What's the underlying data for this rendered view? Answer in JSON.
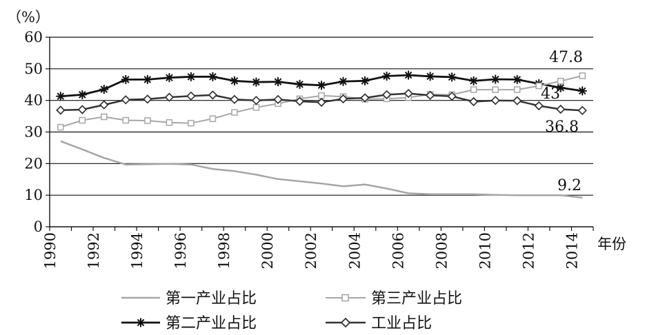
{
  "chart_data": {
    "type": "line",
    "ylabel": "（%）",
    "xlabel": "年份",
    "ylim": [
      0,
      60
    ],
    "xlim": [
      1990,
      2015
    ],
    "y_ticks": [
      "0",
      "10",
      "20",
      "30",
      "40",
      "50",
      "60"
    ],
    "x_ticks": [
      "1990",
      "1992",
      "1994",
      "1996",
      "1998",
      "2000",
      "2002",
      "2004",
      "2006",
      "2008",
      "2010",
      "2012",
      "2014"
    ],
    "grid": "horizontal",
    "legend_placement": "bottom",
    "years": [
      1990,
      1991,
      1992,
      1993,
      1994,
      1995,
      1996,
      1997,
      1998,
      1999,
      2000,
      2001,
      2002,
      2003,
      2004,
      2005,
      2006,
      2007,
      2008,
      2009,
      2010,
      2011,
      2012,
      2013,
      2014
    ],
    "series": [
      {
        "name": "第一产业占比",
        "color": "#a6a6a6",
        "marker": "none",
        "values": [
          27.1,
          24.5,
          21.8,
          19.7,
          19.8,
          19.9,
          19.7,
          18.3,
          17.6,
          16.5,
          15.1,
          14.4,
          13.7,
          12.8,
          13.4,
          12.1,
          10.6,
          10.3,
          10.3,
          10.3,
          10.1,
          10.0,
          10.0,
          10.0,
          9.2
        ]
      },
      {
        "name": "第二产业占比",
        "color": "#111111",
        "marker": "asterisk",
        "values": [
          41.3,
          41.8,
          43.5,
          46.6,
          46.6,
          47.2,
          47.5,
          47.5,
          46.2,
          45.8,
          45.9,
          45.1,
          44.8,
          46.0,
          46.2,
          47.7,
          48.0,
          47.6,
          47.4,
          46.2,
          46.7,
          46.6,
          45.3,
          44.0,
          43.0
        ]
      },
      {
        "name": "第三产业占比",
        "color": "#a6a6a6",
        "marker": "square",
        "values": [
          31.5,
          33.7,
          34.8,
          33.7,
          33.6,
          33.0,
          32.8,
          34.2,
          36.2,
          37.8,
          39.0,
          40.5,
          41.5,
          41.2,
          40.4,
          40.5,
          40.9,
          41.9,
          41.8,
          43.4,
          43.4,
          43.4,
          44.6,
          46.1,
          47.8
        ]
      },
      {
        "name": "工业占比",
        "color": "#333333",
        "marker": "diamond",
        "values": [
          36.9,
          37.1,
          38.6,
          40.2,
          40.4,
          41.0,
          41.4,
          41.7,
          40.3,
          40.0,
          40.3,
          39.7,
          39.4,
          40.5,
          40.8,
          41.8,
          42.2,
          41.6,
          41.3,
          39.6,
          40.0,
          39.9,
          38.3,
          37.2,
          36.8
        ]
      }
    ],
    "annotations": [
      "47.8",
      "43",
      "36.8",
      "9.2"
    ]
  }
}
